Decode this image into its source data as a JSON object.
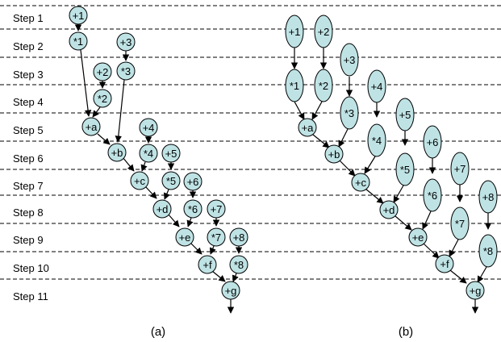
{
  "steps": [
    "Step 1",
    "Step 2",
    "Step 3",
    "Step 4",
    "Step 5",
    "Step 6",
    "Step 7",
    "Step 8",
    "Step 9",
    "Step 10",
    "Step 11"
  ],
  "captions": {
    "a": "(a)",
    "b": "(b)"
  },
  "colors": {
    "node_fill": "#bfe3e5",
    "line": "#000000"
  },
  "diagram_a": {
    "nodes": [
      {
        "id": "a_p1",
        "label": "+1"
      },
      {
        "id": "a_m1",
        "label": "*1"
      },
      {
        "id": "a_p3",
        "label": "+3"
      },
      {
        "id": "a_p2",
        "label": "+2"
      },
      {
        "id": "a_m3",
        "label": "*3"
      },
      {
        "id": "a_m2",
        "label": "*2"
      },
      {
        "id": "a_a",
        "label": "+a"
      },
      {
        "id": "a_p4",
        "label": "+4"
      },
      {
        "id": "a_b",
        "label": "+b"
      },
      {
        "id": "a_m4",
        "label": "*4"
      },
      {
        "id": "a_p5",
        "label": "+5"
      },
      {
        "id": "a_c",
        "label": "+c"
      },
      {
        "id": "a_m5",
        "label": "*5"
      },
      {
        "id": "a_p6",
        "label": "+6"
      },
      {
        "id": "a_d",
        "label": "+d"
      },
      {
        "id": "a_m6",
        "label": "*6"
      },
      {
        "id": "a_p7",
        "label": "+7"
      },
      {
        "id": "a_e",
        "label": "+e"
      },
      {
        "id": "a_m7",
        "label": "*7"
      },
      {
        "id": "a_p8",
        "label": "+8"
      },
      {
        "id": "a_f",
        "label": "+f"
      },
      {
        "id": "a_m8",
        "label": "*8"
      },
      {
        "id": "a_g",
        "label": "+g"
      }
    ]
  },
  "diagram_b": {
    "nodes": [
      {
        "id": "b_p1",
        "label": "+1"
      },
      {
        "id": "b_p2",
        "label": "+2"
      },
      {
        "id": "b_p3",
        "label": "+3"
      },
      {
        "id": "b_m1",
        "label": "*1"
      },
      {
        "id": "b_m2",
        "label": "*2"
      },
      {
        "id": "b_p4",
        "label": "+4"
      },
      {
        "id": "b_m3",
        "label": "*3"
      },
      {
        "id": "b_p5",
        "label": "+5"
      },
      {
        "id": "b_a",
        "label": "+a"
      },
      {
        "id": "b_m4",
        "label": "*4"
      },
      {
        "id": "b_p6",
        "label": "+6"
      },
      {
        "id": "b_b",
        "label": "+b"
      },
      {
        "id": "b_m5",
        "label": "*5"
      },
      {
        "id": "b_p7",
        "label": "+7"
      },
      {
        "id": "b_c",
        "label": "+c"
      },
      {
        "id": "b_m6",
        "label": "*6"
      },
      {
        "id": "b_p8",
        "label": "+8"
      },
      {
        "id": "b_d",
        "label": "+d"
      },
      {
        "id": "b_m7",
        "label": "*7"
      },
      {
        "id": "b_e",
        "label": "+e"
      },
      {
        "id": "b_m8",
        "label": "*8"
      },
      {
        "id": "b_f",
        "label": "+f"
      },
      {
        "id": "b_g",
        "label": "+g"
      }
    ]
  }
}
